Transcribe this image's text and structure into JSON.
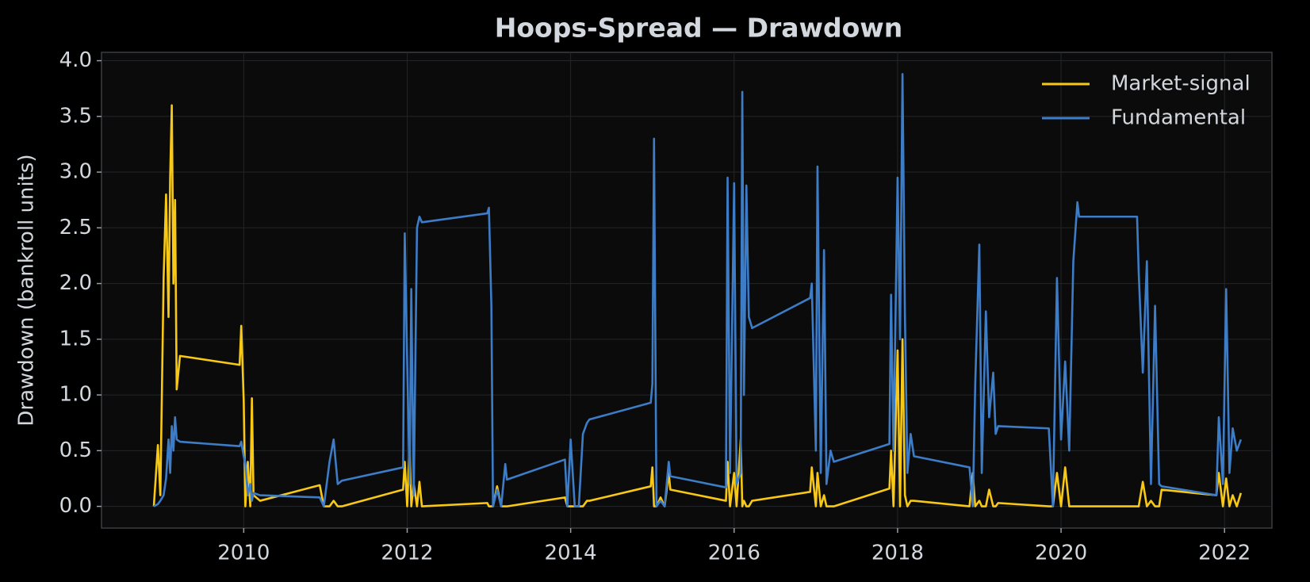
{
  "chart_data": {
    "type": "line",
    "title": "Hoops-Spread — Drawdown",
    "ylabel": "Drawdown (bankroll units)",
    "x": [
      2008.9,
      2008.95,
      2008.98,
      2009.02,
      2009.05,
      2009.08,
      2009.1,
      2009.12,
      2009.14,
      2009.16,
      2009.18,
      2009.22,
      2009.95,
      2009.97,
      2010.0,
      2010.02,
      2010.05,
      2010.08,
      2010.1,
      2010.12,
      2010.2,
      2010.93,
      2010.98,
      2011.05,
      2011.1,
      2011.15,
      2011.2,
      2011.95,
      2011.97,
      2012.0,
      2012.03,
      2012.05,
      2012.08,
      2012.12,
      2012.15,
      2012.18,
      2012.98,
      2013.0,
      2013.03,
      2013.05,
      2013.1,
      2013.15,
      2013.2,
      2013.22,
      2013.93,
      2013.96,
      2014.0,
      2014.05,
      2014.1,
      2014.15,
      2014.2,
      2014.23,
      2014.98,
      2015.0,
      2015.02,
      2015.05,
      2015.1,
      2015.15,
      2015.2,
      2015.22,
      2015.9,
      2015.92,
      2015.95,
      2016.0,
      2016.03,
      2016.08,
      2016.1,
      2016.12,
      2016.15,
      2016.18,
      2016.22,
      2016.93,
      2016.95,
      2017.0,
      2017.02,
      2017.06,
      2017.1,
      2017.13,
      2017.18,
      2017.22,
      2017.9,
      2017.92,
      2017.95,
      2018.0,
      2018.03,
      2018.06,
      2018.09,
      2018.12,
      2018.16,
      2018.2,
      2018.88,
      2018.92,
      2018.95,
      2019.0,
      2019.03,
      2019.08,
      2019.12,
      2019.17,
      2019.2,
      2019.23,
      2019.85,
      2019.9,
      2019.95,
      2020.0,
      2020.05,
      2020.1,
      2020.15,
      2020.2,
      2020.22,
      2020.93,
      2020.95,
      2021.0,
      2021.05,
      2021.1,
      2021.15,
      2021.2,
      2021.23,
      2021.9,
      2021.93,
      2021.98,
      2022.02,
      2022.06,
      2022.1,
      2022.15,
      2022.2
    ],
    "series": [
      {
        "name": "Market-signal",
        "color": "#f7c815",
        "values": [
          0,
          0.55,
          0.1,
          2.05,
          2.8,
          1.7,
          2.95,
          3.6,
          2.0,
          2.75,
          1.05,
          1.35,
          1.27,
          1.62,
          0.95,
          0,
          0.4,
          0,
          0.97,
          0.1,
          0.05,
          0.19,
          0,
          0,
          0.05,
          0,
          0,
          0.15,
          0.4,
          0,
          0.55,
          0,
          0.2,
          0,
          0.22,
          0,
          0.03,
          0,
          0,
          0,
          0.18,
          0,
          0,
          0,
          0.08,
          0,
          0,
          0,
          0,
          0,
          0.05,
          0.05,
          0.18,
          0.35,
          0,
          0,
          0.08,
          0,
          0.3,
          0.15,
          0.05,
          0.4,
          0,
          0.3,
          0,
          0.6,
          0,
          0.05,
          0,
          0,
          0.05,
          0.13,
          0.35,
          0,
          0.3,
          0,
          0.1,
          0,
          0,
          0,
          0.16,
          0.5,
          0,
          1.4,
          0,
          1.5,
          0.1,
          0,
          0.05,
          0.05,
          0,
          0.3,
          0,
          0.05,
          0,
          0,
          0.15,
          0,
          0,
          0.03,
          0,
          0,
          0.3,
          0,
          0.35,
          0,
          0,
          0,
          0,
          0,
          0,
          0.22,
          0,
          0.05,
          0,
          0,
          0.15,
          0.1,
          0.3,
          0,
          0.25,
          0,
          0.1,
          0,
          0.12
        ]
      },
      {
        "name": "Fundamental",
        "color": "#3d7cc6",
        "values": [
          0,
          0.02,
          0.05,
          0.1,
          0.25,
          0.6,
          0.3,
          0.72,
          0.5,
          0.8,
          0.6,
          0.58,
          0.54,
          0.58,
          0.45,
          0.38,
          0.1,
          0.2,
          0.05,
          0.12,
          0.1,
          0.08,
          0,
          0.4,
          0.6,
          0.2,
          0.23,
          0.35,
          2.45,
          1.3,
          0.2,
          1.95,
          0.1,
          2.5,
          2.6,
          2.55,
          2.63,
          2.68,
          1.8,
          0,
          0.15,
          0,
          0.38,
          0.24,
          0.42,
          0,
          0.6,
          0,
          0,
          0.65,
          0.75,
          0.78,
          0.93,
          1.1,
          3.3,
          0,
          0.05,
          0,
          0.4,
          0.27,
          0.17,
          2.95,
          0.3,
          2.9,
          0.2,
          0.3,
          3.72,
          1.0,
          2.88,
          1.7,
          1.6,
          1.87,
          2.0,
          0.5,
          3.05,
          0.3,
          2.3,
          0.2,
          0.5,
          0.4,
          0.56,
          1.9,
          0.5,
          2.95,
          1.5,
          3.88,
          1.7,
          0.3,
          0.65,
          0.45,
          0.35,
          0,
          1.1,
          2.35,
          0.3,
          1.75,
          0.8,
          1.2,
          0.65,
          0.72,
          0.7,
          0,
          2.05,
          0.6,
          1.3,
          0.5,
          2.2,
          2.73,
          2.6,
          2.6,
          2.1,
          1.2,
          2.2,
          0.2,
          1.8,
          0.2,
          0.18,
          0.1,
          0.8,
          0.2,
          1.95,
          0.3,
          0.7,
          0.5,
          0.6
        ]
      }
    ],
    "xlim": [
      2008.26,
      2022.58
    ],
    "xticks": [
      2010,
      2012,
      2014,
      2016,
      2018,
      2020,
      2022
    ],
    "ylim": [
      -0.195,
      4.075
    ],
    "yticks": [
      {
        "value": 0,
        "label": "0.0"
      },
      {
        "value": 0.5,
        "label": "0.5"
      },
      {
        "value": 1,
        "label": "1.0"
      },
      {
        "value": 1.5,
        "label": "1.5"
      },
      {
        "value": 2,
        "label": "2.0"
      },
      {
        "value": 2.5,
        "label": "2.5"
      },
      {
        "value": 3,
        "label": "3.0"
      },
      {
        "value": 3.5,
        "label": "3.5"
      },
      {
        "value": 4,
        "label": "4.0"
      }
    ],
    "grid": true,
    "legend": "upper right"
  }
}
